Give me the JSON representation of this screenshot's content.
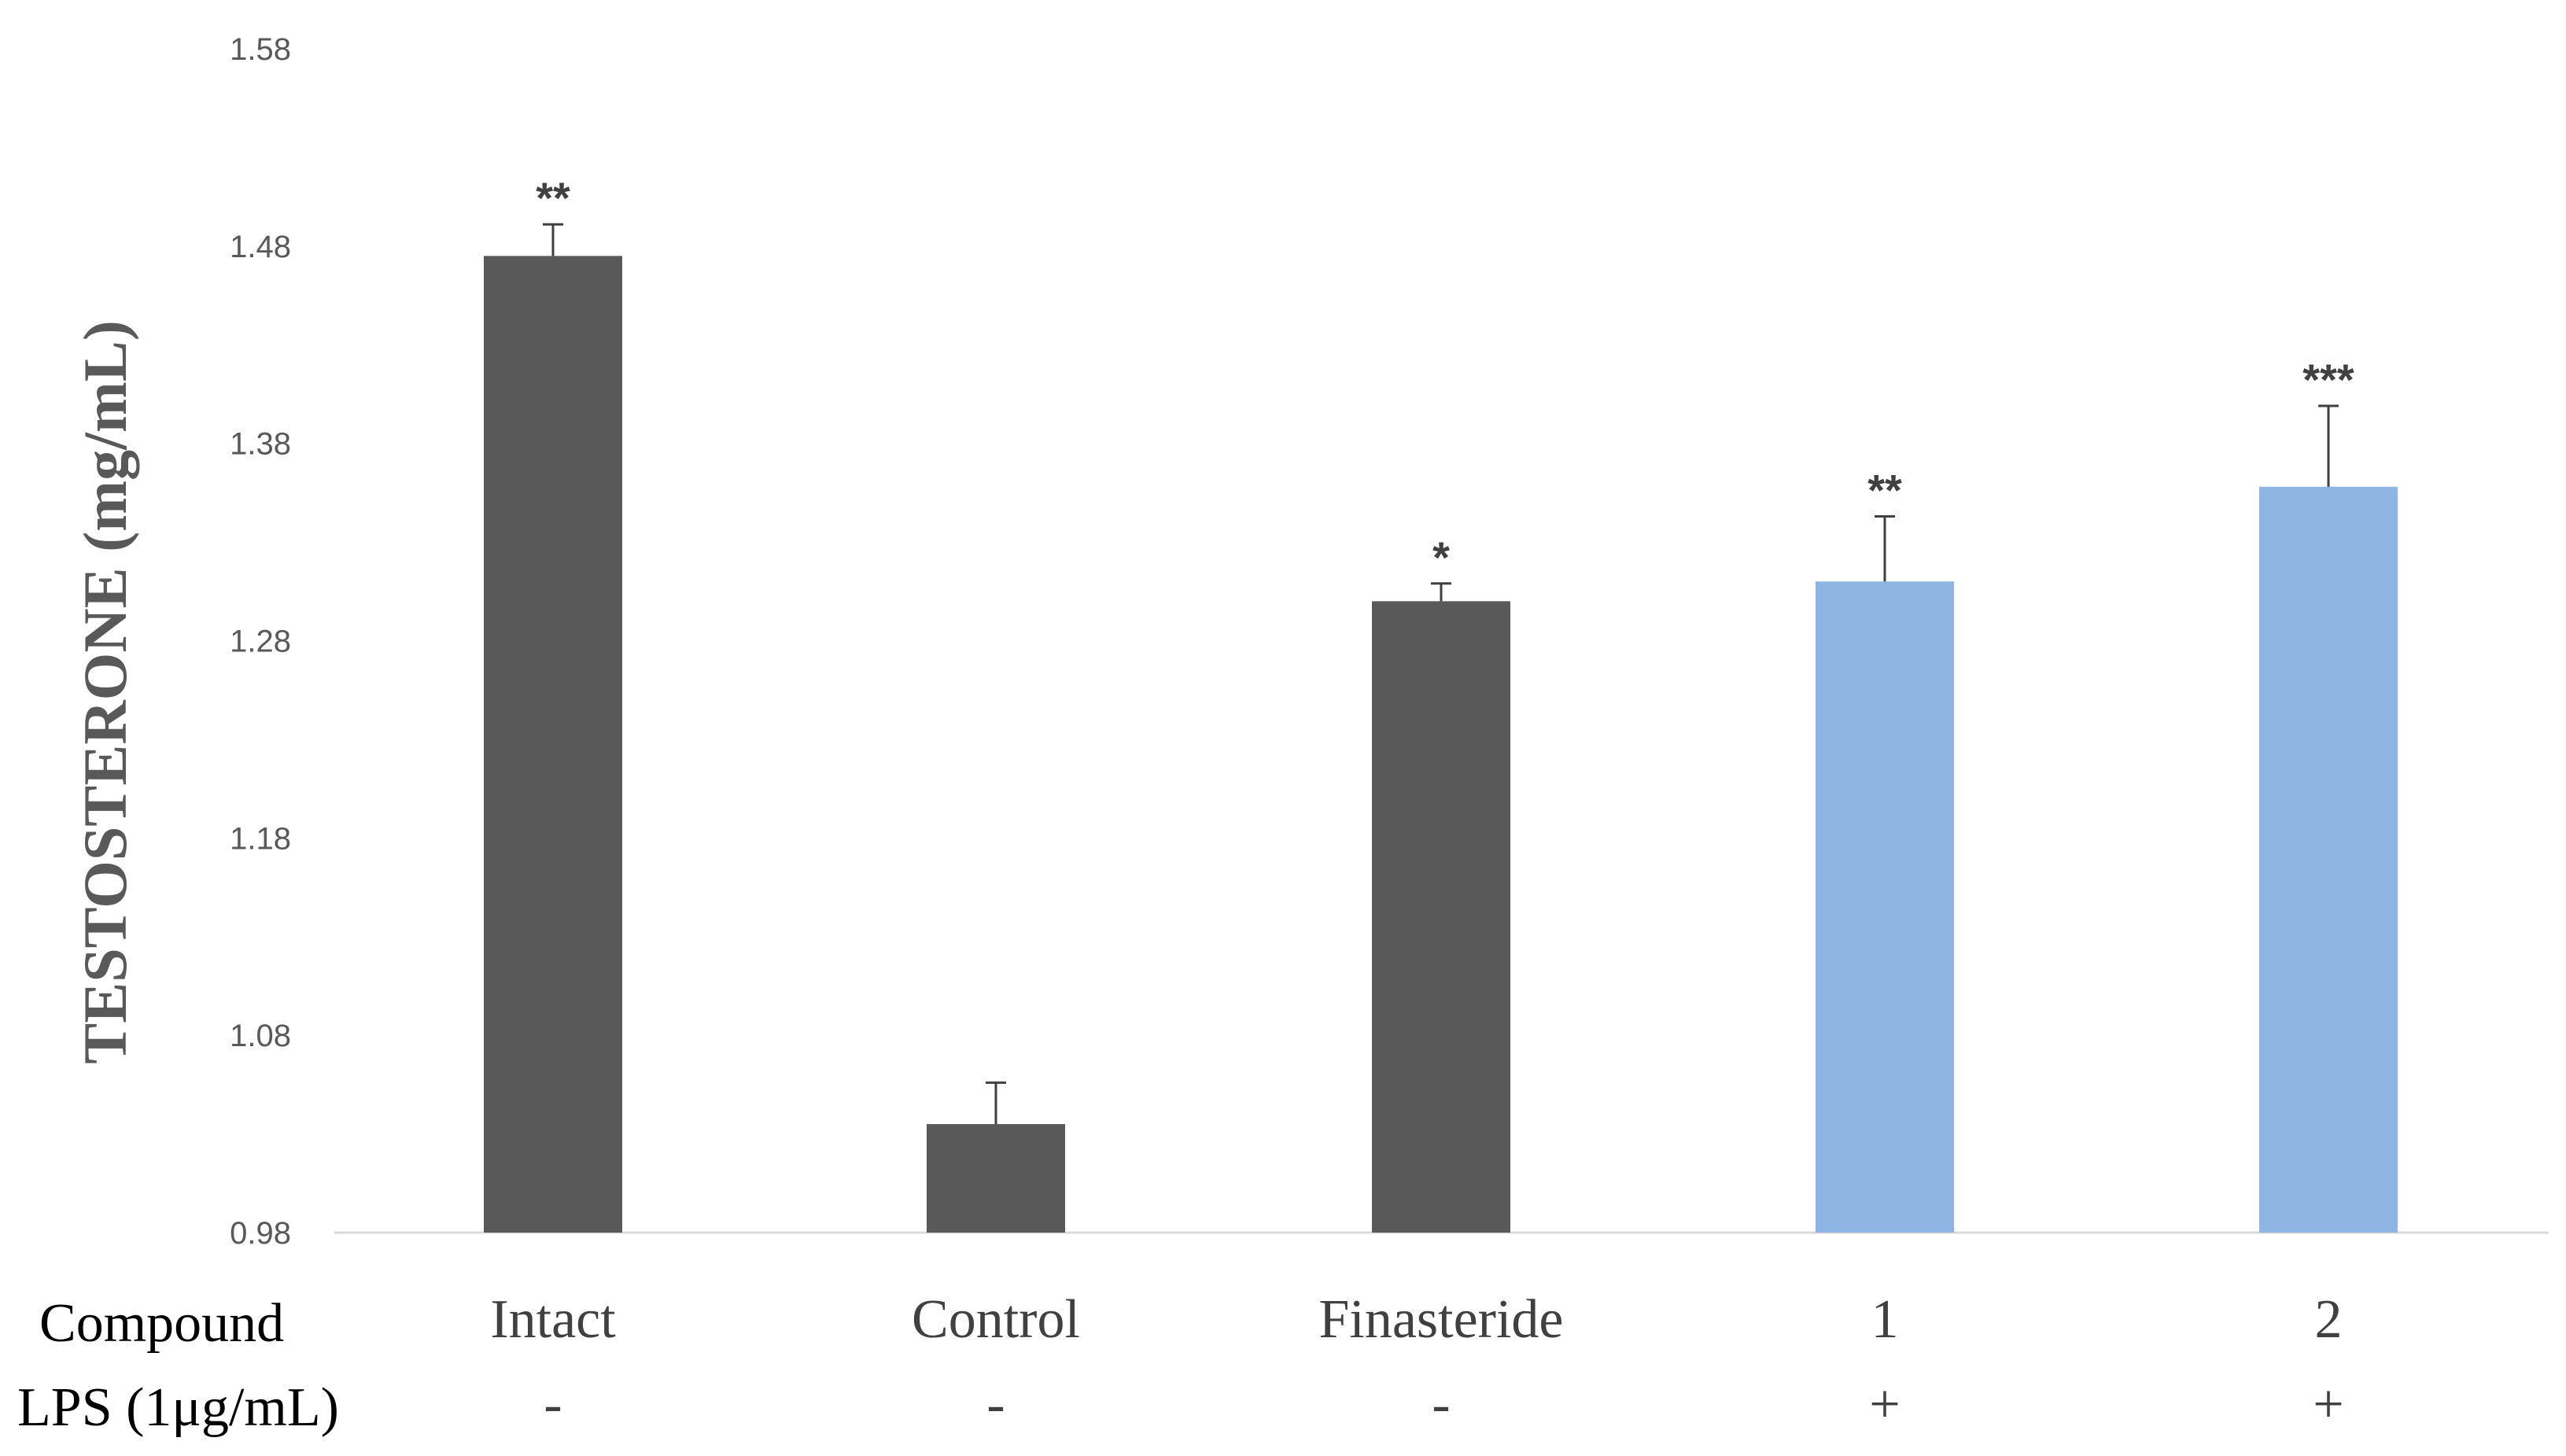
{
  "chart_data": {
    "type": "bar",
    "ylabel": "TESTOSTERONE (mg/mL)",
    "xlabel": "",
    "ylim": [
      0.98,
      1.58
    ],
    "yticks": [
      "1.58",
      "1.48",
      "1.38",
      "1.28",
      "1.18",
      "1.08",
      "0.98"
    ],
    "categories": [
      "Intact",
      "Control",
      "Finasteride",
      "1",
      "2"
    ],
    "values": [
      1.475,
      1.035,
      1.3,
      1.31,
      1.358
    ],
    "errors": [
      0.016,
      0.021,
      0.009,
      0.033,
      0.041
    ],
    "significance": [
      "**",
      "",
      "*",
      "**",
      "***"
    ],
    "bar_colors": [
      "#595959",
      "#595959",
      "#595959",
      "#8eb4e3",
      "#8eb4e3"
    ],
    "grid": false,
    "legend": "none",
    "row_labels": {
      "compound": "Compound",
      "lps": "LPS (1μg/mL)"
    },
    "lps_values": [
      "-",
      "-",
      "-",
      "+",
      "+"
    ]
  }
}
